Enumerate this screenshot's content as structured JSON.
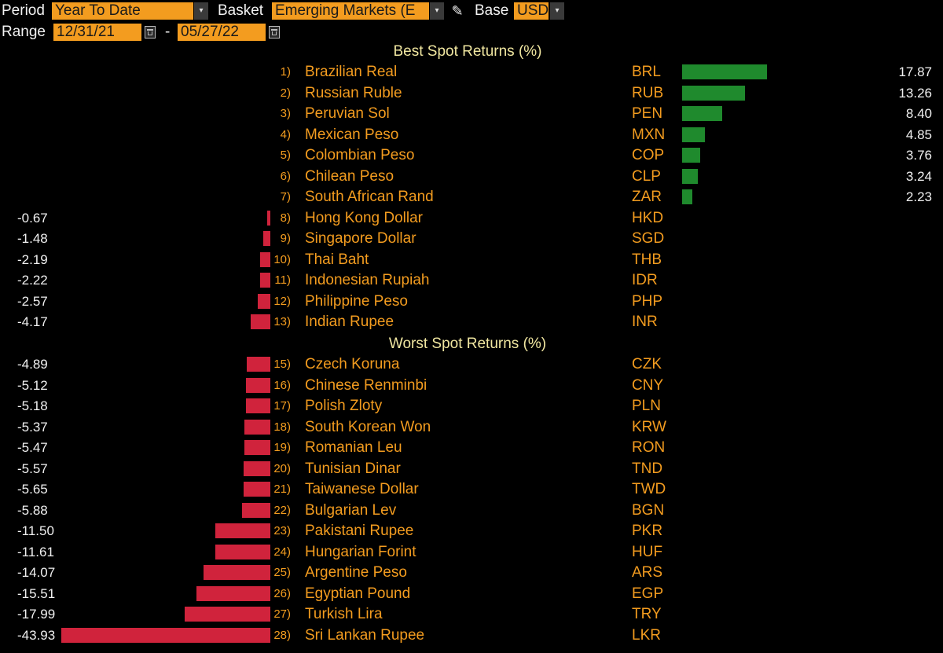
{
  "controls": {
    "period_label": "Period",
    "period_value": "Year To Date",
    "basket_label": "Basket",
    "basket_value": "Emerging Markets (E",
    "base_label": "Base",
    "base_value": "USD",
    "range_label": "Range",
    "range_start": "12/31/21",
    "range_sep": "-",
    "range_end": "05/27/22",
    "dropdown_glyph": "▾",
    "pencil_glyph": "✎"
  },
  "sections": {
    "best_title": "Best Spot Returns (%)",
    "worst_title": "Worst Spot Returns (%)"
  },
  "colors": {
    "positive_bar": "#1f8a2d",
    "negative_bar": "#d0233c",
    "accent": "#f39c1f"
  },
  "chart_data": {
    "type": "bar",
    "unit": "%",
    "best": [
      {
        "rank": "1)",
        "name": "Brazilian Real",
        "code": "BRL",
        "value": 17.87,
        "label": "17.87"
      },
      {
        "rank": "2)",
        "name": "Russian Ruble",
        "code": "RUB",
        "value": 13.26,
        "label": "13.26"
      },
      {
        "rank": "3)",
        "name": "Peruvian Sol",
        "code": "PEN",
        "value": 8.4,
        "label": "8.40"
      },
      {
        "rank": "4)",
        "name": "Mexican Peso",
        "code": "MXN",
        "value": 4.85,
        "label": "4.85"
      },
      {
        "rank": "5)",
        "name": "Colombian Peso",
        "code": "COP",
        "value": 3.76,
        "label": "3.76"
      },
      {
        "rank": "6)",
        "name": "Chilean Peso",
        "code": "CLP",
        "value": 3.24,
        "label": "3.24"
      },
      {
        "rank": "7)",
        "name": "South African Rand",
        "code": "ZAR",
        "value": 2.23,
        "label": "2.23"
      },
      {
        "rank": "8)",
        "name": "Hong Kong Dollar",
        "code": "HKD",
        "value": -0.67,
        "label": "-0.67"
      },
      {
        "rank": "9)",
        "name": "Singapore Dollar",
        "code": "SGD",
        "value": -1.48,
        "label": "-1.48"
      },
      {
        "rank": "10)",
        "name": "Thai Baht",
        "code": "THB",
        "value": -2.19,
        "label": "-2.19"
      },
      {
        "rank": "11)",
        "name": "Indonesian Rupiah",
        "code": "IDR",
        "value": -2.22,
        "label": "-2.22"
      },
      {
        "rank": "12)",
        "name": "Philippine Peso",
        "code": "PHP",
        "value": -2.57,
        "label": "-2.57"
      },
      {
        "rank": "13)",
        "name": "Indian Rupee",
        "code": "INR",
        "value": -4.17,
        "label": "-4.17"
      }
    ],
    "worst": [
      {
        "rank": "15)",
        "name": "Czech Koruna",
        "code": "CZK",
        "value": -4.89,
        "label": "-4.89"
      },
      {
        "rank": "16)",
        "name": "Chinese Renminbi",
        "code": "CNY",
        "value": -5.12,
        "label": "-5.12"
      },
      {
        "rank": "17)",
        "name": "Polish Zloty",
        "code": "PLN",
        "value": -5.18,
        "label": "-5.18"
      },
      {
        "rank": "18)",
        "name": "South Korean Won",
        "code": "KRW",
        "value": -5.37,
        "label": "-5.37"
      },
      {
        "rank": "19)",
        "name": "Romanian Leu",
        "code": "RON",
        "value": -5.47,
        "label": "-5.47"
      },
      {
        "rank": "20)",
        "name": "Tunisian Dinar",
        "code": "TND",
        "value": -5.57,
        "label": "-5.57"
      },
      {
        "rank": "21)",
        "name": "Taiwanese Dollar",
        "code": "TWD",
        "value": -5.65,
        "label": "-5.65"
      },
      {
        "rank": "22)",
        "name": "Bulgarian Lev",
        "code": "BGN",
        "value": -5.88,
        "label": "-5.88"
      },
      {
        "rank": "23)",
        "name": "Pakistani Rupee",
        "code": "PKR",
        "value": -11.5,
        "label": "-11.50"
      },
      {
        "rank": "24)",
        "name": "Hungarian Forint",
        "code": "HUF",
        "value": -11.61,
        "label": "-11.61"
      },
      {
        "rank": "25)",
        "name": "Argentine Peso",
        "code": "ARS",
        "value": -14.07,
        "label": "-14.07"
      },
      {
        "rank": "26)",
        "name": "Egyptian Pound",
        "code": "EGP",
        "value": -15.51,
        "label": "-15.51"
      },
      {
        "rank": "27)",
        "name": "Turkish Lira",
        "code": "TRY",
        "value": -17.99,
        "label": "-17.99"
      },
      {
        "rank": "28)",
        "name": "Sri Lankan Rupee",
        "code": "LKR",
        "value": -43.93,
        "label": "-43.93"
      }
    ]
  }
}
